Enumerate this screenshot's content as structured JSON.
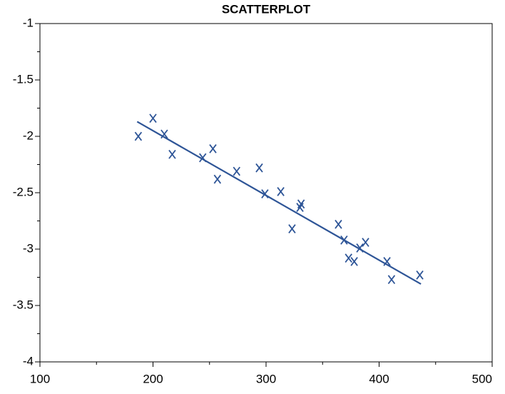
{
  "chart_data": {
    "type": "scatter",
    "title": "SCATTERPLOT",
    "x": [
      187,
      200,
      210,
      217,
      244,
      253,
      257,
      274,
      294,
      299,
      313,
      323,
      330,
      331,
      364,
      369,
      373,
      378,
      383,
      388,
      407,
      411,
      436
    ],
    "values": [
      -2.0,
      -1.84,
      -1.98,
      -2.16,
      -2.19,
      -2.11,
      -2.38,
      -2.31,
      -2.28,
      -2.51,
      -2.49,
      -2.82,
      -2.63,
      -2.6,
      -2.78,
      -2.92,
      -3.08,
      -3.11,
      -2.99,
      -2.94,
      -3.11,
      -3.27,
      -3.23
    ],
    "color": "#2e5597",
    "fit": {
      "x": [
        186,
        437
      ],
      "values": [
        -1.87,
        -3.31
      ]
    },
    "xlim": [
      100,
      500
    ],
    "ylim": [
      -4,
      -1
    ],
    "xticks": [
      100,
      200,
      300,
      400,
      500
    ],
    "yticks": [
      -1,
      -1.5,
      -2,
      -2.5,
      -3,
      -3.5,
      -4
    ],
    "x_minor_ticks": [
      150,
      250,
      350,
      450
    ],
    "y_minor_ticks": [
      -1.25,
      -1.75,
      -2.25,
      -2.75,
      -3.25,
      -3.75
    ]
  }
}
